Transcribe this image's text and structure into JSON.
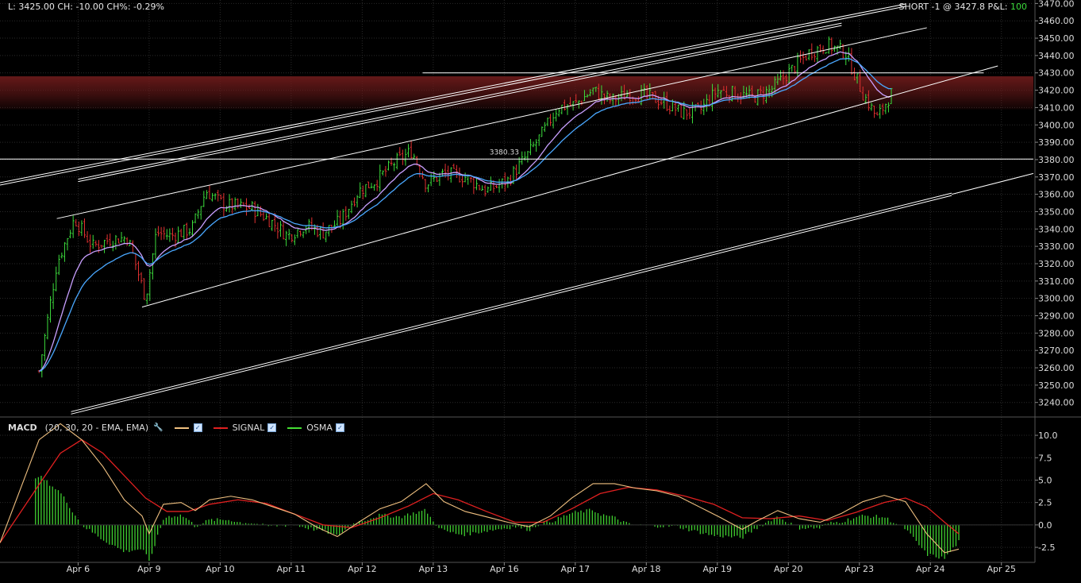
{
  "header": {
    "left_text": "L: 3425.00 CH: -10.00 CH%: -0.29%",
    "position_text": "SHORT -1 @ 3427.8 P&L: ",
    "pl_value": "100"
  },
  "colors": {
    "background": "#000000",
    "grid": "#2a2a2a",
    "up_bar": "#3cdc3c",
    "down_bar": "#e03030",
    "ema_fast": "#c9a0ff",
    "ema_slow": "#4aa8ff",
    "macd": "#f0c080",
    "signal": "#e02020",
    "osma": "#44dd33",
    "resistance_zone": "#6b1a1a",
    "trendline": "#ffffff"
  },
  "macd_legend": {
    "name": "MACD",
    "params": "(20, 30, 20 - EMA, EMA)",
    "signal_label": "SIGNAL",
    "osma_label": "OSMA"
  },
  "chart_data": [
    {
      "type": "candlestick",
      "title": "",
      "y_ticks": [
        "3470.00",
        "3460.00",
        "3450.00",
        "3440.00",
        "3430.00",
        "3420.00",
        "3410.00",
        "3400.00",
        "3390.00",
        "3380.00",
        "3370.00",
        "3360.00",
        "3350.00",
        "3340.00",
        "3330.00",
        "3320.00",
        "3310.00",
        "3300.00",
        "3290.00",
        "3280.00",
        "3270.00",
        "3260.00",
        "3250.00",
        "3240.00"
      ],
      "ylim": [
        3233,
        3472
      ],
      "x_ticks": [
        "Apr 6",
        "Apr 9",
        "Apr 10",
        "Apr 11",
        "Apr 12",
        "Apr 13",
        "Apr 16",
        "Apr 17",
        "Apr 18",
        "Apr 19",
        "Apr 20",
        "Apr 23",
        "Apr 24",
        "Apr 25"
      ],
      "x_tick_index": [
        0.55,
        1.55,
        2.55,
        3.55,
        4.55,
        5.55,
        6.55,
        7.55,
        8.55,
        9.55,
        10.55,
        11.55,
        12.55,
        13.55
      ],
      "xlim": [
        -0.55,
        14.0
      ],
      "price_path": [
        [
          0.0,
          3258
        ],
        [
          0.25,
          3320
        ],
        [
          0.5,
          3346
        ],
        [
          0.75,
          3330
        ],
        [
          1.0,
          3334
        ],
        [
          1.25,
          3335
        ],
        [
          1.5,
          3300
        ],
        [
          1.65,
          3338
        ],
        [
          1.85,
          3336
        ],
        [
          2.15,
          3340
        ],
        [
          2.35,
          3362
        ],
        [
          2.6,
          3354
        ],
        [
          3.0,
          3352
        ],
        [
          3.25,
          3345
        ],
        [
          3.5,
          3336
        ],
        [
          3.75,
          3342
        ],
        [
          4.0,
          3338
        ],
        [
          4.25,
          3345
        ],
        [
          4.5,
          3362
        ],
        [
          4.75,
          3368
        ],
        [
          5.0,
          3378
        ],
        [
          5.25,
          3385
        ],
        [
          5.45,
          3366
        ],
        [
          5.7,
          3372
        ],
        [
          6.0,
          3370
        ],
        [
          6.3,
          3362
        ],
        [
          6.6,
          3368
        ],
        [
          6.9,
          3384
        ],
        [
          7.1,
          3396
        ],
        [
          7.3,
          3410
        ],
        [
          7.55,
          3412
        ],
        [
          7.8,
          3420
        ],
        [
          8.05,
          3414
        ],
        [
          8.3,
          3418
        ],
        [
          8.55,
          3417
        ],
        [
          8.8,
          3413
        ],
        [
          9.05,
          3407
        ],
        [
          9.3,
          3408
        ],
        [
          9.55,
          3420
        ],
        [
          9.8,
          3418
        ],
        [
          10.05,
          3416
        ],
        [
          10.3,
          3420
        ],
        [
          10.6,
          3432
        ],
        [
          10.85,
          3442
        ],
        [
          11.1,
          3446
        ],
        [
          11.35,
          3442
        ],
        [
          11.6,
          3418
        ],
        [
          11.8,
          3404
        ],
        [
          12.0,
          3418
        ]
      ],
      "reference_labels": [
        {
          "text": "3380.33",
          "x": 6.55,
          "y": 3383
        }
      ],
      "horizontal_lines": [
        {
          "y": 3380.33,
          "x0": -0.55,
          "x1": 14.0
        },
        {
          "y": 3430,
          "x0": 5.4,
          "x1": 13.3
        }
      ],
      "resistance_zone": [
        3409,
        3428
      ],
      "trendlines": [
        {
          "x0": -0.55,
          "y0": 3366,
          "x1": 12.2,
          "y1": 3469,
          "double": true
        },
        {
          "x0": 0.55,
          "y0": 3368,
          "x1": 11.3,
          "y1": 3458,
          "double": true
        },
        {
          "x0": 0.25,
          "y0": 3346,
          "x1": 12.5,
          "y1": 3456,
          "double": false
        },
        {
          "x0": 1.45,
          "y0": 3295,
          "x1": 13.5,
          "y1": 3434,
          "double": false
        },
        {
          "x0": 0.45,
          "y0": 3234,
          "x1": 12.85,
          "y1": 3360,
          "double": true
        },
        {
          "x0": 12.85,
          "y0": 3360,
          "x1": 14.0,
          "y1": 3372,
          "double": false
        }
      ]
    },
    {
      "type": "line",
      "title": "MACD",
      "y_ticks": [
        "10.0",
        "7.5",
        "5.0",
        "2.5",
        "0.0",
        "-2.5"
      ],
      "ylim": [
        -4.0,
        11.6
      ],
      "series": [
        {
          "name": "MACD",
          "points": [
            [
              -0.55,
              -2
            ],
            [
              0.0,
              9.5
            ],
            [
              0.3,
              11.3
            ],
            [
              0.6,
              9.5
            ],
            [
              0.9,
              6.5
            ],
            [
              1.2,
              2.8
            ],
            [
              1.45,
              1.0
            ],
            [
              1.55,
              -1.0
            ],
            [
              1.75,
              2.3
            ],
            [
              2.0,
              2.5
            ],
            [
              2.2,
              1.6
            ],
            [
              2.4,
              2.8
            ],
            [
              2.7,
              3.2
            ],
            [
              3.0,
              2.8
            ],
            [
              3.3,
              2.0
            ],
            [
              3.6,
              1.2
            ],
            [
              3.9,
              -0.2
            ],
            [
              4.2,
              -1.3
            ],
            [
              4.5,
              0.3
            ],
            [
              4.8,
              1.8
            ],
            [
              5.1,
              2.6
            ],
            [
              5.45,
              4.6
            ],
            [
              5.7,
              2.6
            ],
            [
              6.0,
              1.5
            ],
            [
              6.3,
              0.9
            ],
            [
              6.6,
              0.3
            ],
            [
              6.9,
              -0.2
            ],
            [
              7.2,
              1.0
            ],
            [
              7.5,
              3.0
            ],
            [
              7.8,
              4.6
            ],
            [
              8.1,
              4.6
            ],
            [
              8.4,
              4.1
            ],
            [
              8.7,
              3.8
            ],
            [
              9.0,
              3.2
            ],
            [
              9.3,
              2.0
            ],
            [
              9.6,
              0.8
            ],
            [
              9.9,
              -0.5
            ],
            [
              10.1,
              0.4
            ],
            [
              10.4,
              1.6
            ],
            [
              10.7,
              0.7
            ],
            [
              11.0,
              0.3
            ],
            [
              11.3,
              1.3
            ],
            [
              11.6,
              2.6
            ],
            [
              11.9,
              3.3
            ],
            [
              12.2,
              2.6
            ],
            [
              12.5,
              -1.0
            ],
            [
              12.75,
              -3.1
            ],
            [
              12.95,
              -2.7
            ]
          ]
        },
        {
          "name": "SIGNAL",
          "points": [
            [
              -0.55,
              -2
            ],
            [
              0.0,
              4.5
            ],
            [
              0.3,
              8.0
            ],
            [
              0.6,
              9.5
            ],
            [
              0.9,
              8.0
            ],
            [
              1.2,
              5.5
            ],
            [
              1.5,
              3.0
            ],
            [
              1.8,
              1.5
            ],
            [
              2.1,
              1.5
            ],
            [
              2.4,
              2.3
            ],
            [
              2.8,
              2.8
            ],
            [
              3.2,
              2.4
            ],
            [
              3.6,
              1.2
            ],
            [
              4.0,
              0.0
            ],
            [
              4.4,
              -0.3
            ],
            [
              4.8,
              0.8
            ],
            [
              5.2,
              2.1
            ],
            [
              5.55,
              3.5
            ],
            [
              5.9,
              2.8
            ],
            [
              6.3,
              1.5
            ],
            [
              6.7,
              0.3
            ],
            [
              7.1,
              0.3
            ],
            [
              7.5,
              1.8
            ],
            [
              7.9,
              3.5
            ],
            [
              8.3,
              4.2
            ],
            [
              8.7,
              3.9
            ],
            [
              9.1,
              3.2
            ],
            [
              9.5,
              2.3
            ],
            [
              9.9,
              0.8
            ],
            [
              10.3,
              0.7
            ],
            [
              10.7,
              1.0
            ],
            [
              11.1,
              0.5
            ],
            [
              11.5,
              1.4
            ],
            [
              11.9,
              2.5
            ],
            [
              12.2,
              3.0
            ],
            [
              12.5,
              2.0
            ],
            [
              12.75,
              0.3
            ],
            [
              12.95,
              -1.0
            ]
          ]
        }
      ],
      "histogram": {
        "name": "OSMA"
      }
    }
  ]
}
